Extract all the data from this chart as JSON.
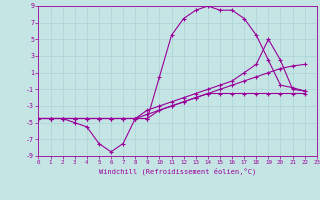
{
  "xlabel": "Windchill (Refroidissement éolien,°C)",
  "xlim": [
    0,
    23
  ],
  "ylim": [
    -9,
    9
  ],
  "bg_color": "#c5e5e5",
  "line_color": "#990099",
  "grid_color": "#aad4d4",
  "line1_y": [
    -4.5,
    -4.5,
    -4.5,
    -5.0,
    -5.5,
    -7.5,
    -8.5,
    -7.5,
    -4.5,
    -4.5,
    0.5,
    5.5,
    7.5,
    8.5,
    9.0,
    8.5,
    8.5,
    7.5,
    5.5,
    2.5,
    -0.5,
    -0.8,
    -1.2
  ],
  "line2_y": [
    -4.5,
    -4.5,
    -4.5,
    -4.5,
    -4.5,
    -4.5,
    -4.5,
    -4.5,
    -4.5,
    -4.5,
    -3.5,
    -3.0,
    -2.5,
    -2.0,
    -1.5,
    -1.5,
    -1.5,
    -1.5,
    -1.5,
    -1.5,
    -1.5,
    -1.5,
    -1.5
  ],
  "line3_y": [
    -4.5,
    -4.5,
    -4.5,
    -4.5,
    -4.5,
    -4.5,
    -4.5,
    -4.5,
    -4.5,
    -4.0,
    -3.5,
    -3.0,
    -2.5,
    -2.0,
    -1.5,
    -1.0,
    -0.5,
    0.0,
    0.5,
    1.0,
    1.5,
    1.8,
    2.0
  ],
  "line4_y": [
    -4.5,
    -4.5,
    -4.5,
    -4.5,
    -4.5,
    -4.5,
    -4.5,
    -4.5,
    -4.5,
    -3.5,
    -3.0,
    -2.5,
    -2.0,
    -1.5,
    -1.0,
    -0.5,
    0.0,
    1.0,
    2.0,
    5.0,
    2.5,
    -1.0,
    -1.2
  ],
  "ytick_labels": [
    "9",
    "7",
    "5",
    "3",
    "1",
    "-1",
    "-3",
    "-5",
    "-7",
    "-9"
  ],
  "ytick_vals": [
    9,
    7,
    5,
    3,
    1,
    -1,
    -3,
    -5,
    -7,
    -9
  ],
  "xtick_labels": [
    "0",
    "1",
    "2",
    "3",
    "4",
    "5",
    "6",
    "7",
    "8",
    "9",
    "10",
    "11",
    "12",
    "13",
    "14",
    "15",
    "16",
    "17",
    "18",
    "19",
    "20",
    "21",
    "22",
    "23"
  ],
  "xtick_vals": [
    0,
    1,
    2,
    3,
    4,
    5,
    6,
    7,
    8,
    9,
    10,
    11,
    12,
    13,
    14,
    15,
    16,
    17,
    18,
    19,
    20,
    21,
    22,
    23
  ]
}
